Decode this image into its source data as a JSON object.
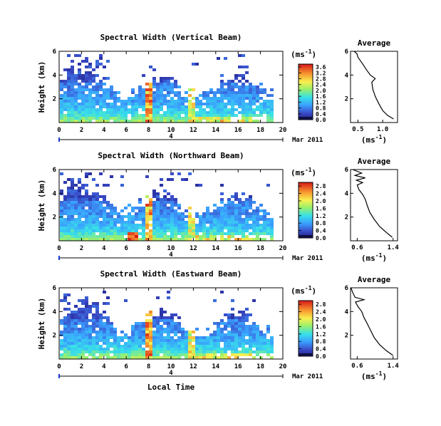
{
  "figure": {
    "xlabel": "Local Time",
    "date_label": "Mar 2011",
    "timeline_label": "4",
    "unit_label": "(ms",
    "unit_exp": "-1",
    "unit_close": ")",
    "average_unit": "(ms",
    "average_unit_exp": "-1",
    "average_unit_close": ")"
  },
  "chart_data": [
    {
      "type": "heatmap",
      "title": "Spectral Width (Vertical Beam)",
      "ylabel": "Height (km)",
      "x_ticks": [
        "0",
        "2",
        "4",
        "6",
        "8",
        "10",
        "12",
        "14",
        "16",
        "18",
        "20"
      ],
      "y_ticks": [
        "2",
        "4",
        "6"
      ],
      "xlim": [
        0,
        20
      ],
      "ylim": [
        0,
        6
      ],
      "data_extent": [
        0,
        19
      ],
      "colorbar": {
        "ticks": [
          "0.0",
          "0.4",
          "0.8",
          "1.2",
          "1.6",
          "2.0",
          "2.4",
          "2.8",
          "3.2",
          "3.6"
        ],
        "range": [
          0.0,
          3.8
        ]
      },
      "average": {
        "title": "Average",
        "x_ticks": [
          "0.5",
          "1.0"
        ],
        "xlim": [
          0.35,
          1.3
        ],
        "y_ticks": [
          "2",
          "4",
          "6"
        ],
        "profile": [
          [
            1.22,
            0.3
          ],
          [
            1.1,
            0.6
          ],
          [
            1.0,
            1.0
          ],
          [
            0.92,
            1.6
          ],
          [
            0.85,
            2.2
          ],
          [
            0.8,
            2.8
          ],
          [
            0.78,
            3.4
          ],
          [
            0.85,
            3.7
          ],
          [
            0.75,
            4.0
          ],
          [
            0.68,
            4.4
          ],
          [
            0.6,
            4.9
          ],
          [
            0.55,
            5.2
          ],
          [
            0.5,
            5.5
          ],
          [
            0.48,
            5.8
          ],
          [
            0.42,
            6.0
          ]
        ]
      }
    },
    {
      "type": "heatmap",
      "title": "Spectral Width (Northward Beam)",
      "ylabel": "Height (km)",
      "x_ticks": [
        "0",
        "2",
        "4",
        "6",
        "8",
        "10",
        "12",
        "14",
        "16",
        "18",
        "20"
      ],
      "y_ticks": [
        "2",
        "4",
        "6"
      ],
      "xlim": [
        0,
        20
      ],
      "ylim": [
        0,
        6
      ],
      "data_extent": [
        0,
        19
      ],
      "colorbar": {
        "ticks": [
          "0.0",
          "0.4",
          "0.8",
          "1.2",
          "1.6",
          "2.0",
          "2.4",
          "2.8"
        ],
        "range": [
          0.0,
          3.0
        ]
      },
      "average": {
        "title": "Average",
        "x_ticks": [
          "0.6",
          "1.4"
        ],
        "xlim": [
          0.45,
          1.5
        ],
        "y_ticks": [
          "2",
          "4",
          "6"
        ],
        "profile": [
          [
            1.38,
            0.3
          ],
          [
            1.25,
            0.7
          ],
          [
            1.1,
            1.2
          ],
          [
            0.98,
            1.8
          ],
          [
            0.88,
            2.4
          ],
          [
            0.82,
            3.0
          ],
          [
            0.78,
            3.5
          ],
          [
            0.72,
            3.9
          ],
          [
            0.64,
            4.3
          ],
          [
            0.6,
            4.7
          ],
          [
            0.72,
            4.9
          ],
          [
            0.58,
            5.1
          ],
          [
            0.78,
            5.3
          ],
          [
            0.55,
            5.5
          ],
          [
            0.7,
            5.7
          ],
          [
            0.5,
            6.0
          ]
        ]
      }
    },
    {
      "type": "heatmap",
      "title": "Spectral Width (Eastward Beam)",
      "ylabel": "Height (km)",
      "x_ticks": [
        "0",
        "2",
        "4",
        "6",
        "8",
        "10",
        "12",
        "14",
        "16",
        "18",
        "20"
      ],
      "y_ticks": [
        "2",
        "4",
        "6"
      ],
      "xlim": [
        0,
        20
      ],
      "ylim": [
        0,
        6
      ],
      "data_extent": [
        0,
        19
      ],
      "colorbar": {
        "ticks": [
          "0.0",
          "0.4",
          "0.8",
          "1.2",
          "1.6",
          "2.0",
          "2.4",
          "2.8"
        ],
        "range": [
          0.0,
          3.0
        ]
      },
      "average": {
        "title": "Average",
        "x_ticks": [
          "0.6",
          "1.4"
        ],
        "xlim": [
          0.45,
          1.5
        ],
        "y_ticks": [
          "2",
          "4",
          "6"
        ],
        "profile": [
          [
            1.4,
            0.3
          ],
          [
            1.25,
            0.7
          ],
          [
            1.1,
            1.2
          ],
          [
            0.98,
            1.8
          ],
          [
            0.9,
            2.4
          ],
          [
            0.82,
            3.0
          ],
          [
            0.75,
            3.5
          ],
          [
            0.7,
            4.0
          ],
          [
            0.62,
            4.4
          ],
          [
            0.56,
            4.8
          ],
          [
            0.75,
            5.0
          ],
          [
            0.55,
            5.2
          ],
          [
            0.5,
            5.6
          ],
          [
            0.46,
            6.0
          ]
        ]
      }
    }
  ]
}
